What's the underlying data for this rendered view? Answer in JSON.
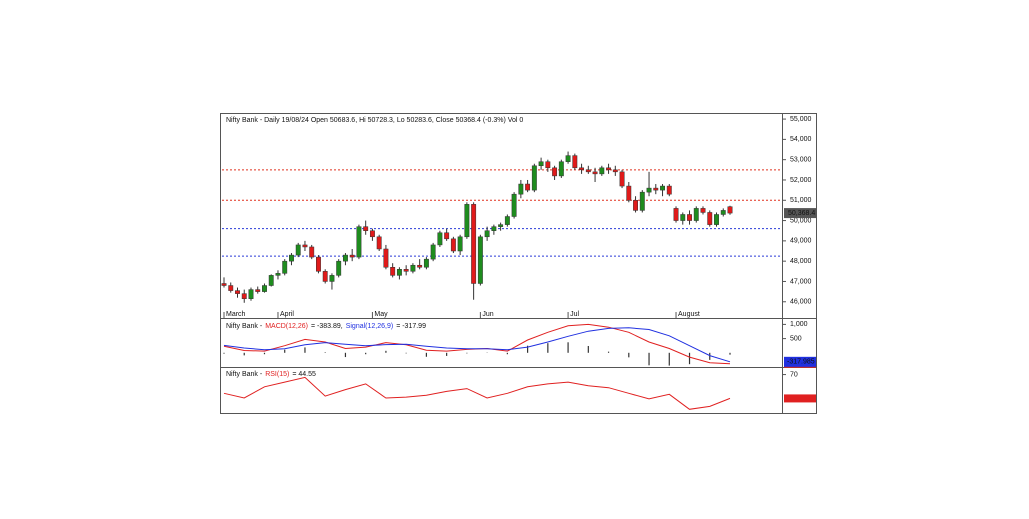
{
  "chart_data": [
    {
      "type": "candlestick",
      "title": "Nifty Bank - Daily 19/08/24 Open 50683.6, Hi 50728.3, Lo 50283.6, Close 50368.4 (-0.3%) Vol 0",
      "xlim": [
        0,
        75
      ],
      "xticks": [
        {
          "value": 0,
          "label": "March"
        },
        {
          "value": 8,
          "label": "April"
        },
        {
          "value": 22,
          "label": "May"
        },
        {
          "value": 38,
          "label": "Jun"
        },
        {
          "value": 51,
          "label": "Jul"
        },
        {
          "value": 67,
          "label": "August"
        }
      ],
      "up_color": "#1e8c1e",
      "down_color": "#e01a1a",
      "ohlc": [
        [
          46900,
          47200,
          46700,
          46800
        ],
        [
          46800,
          46950,
          46450,
          46550
        ],
        [
          46550,
          46700,
          46200,
          46400
        ],
        [
          46400,
          46600,
          45950,
          46150
        ],
        [
          46150,
          46700,
          46050,
          46600
        ],
        [
          46600,
          46750,
          46400,
          46500
        ],
        [
          46500,
          46900,
          46450,
          46800
        ],
        [
          46800,
          47350,
          46750,
          47300
        ],
        [
          47300,
          47550,
          47100,
          47400
        ],
        [
          47400,
          48100,
          47300,
          48000
        ],
        [
          48000,
          48400,
          47800,
          48300
        ],
        [
          48300,
          48900,
          48200,
          48800
        ],
        [
          48800,
          49000,
          48500,
          48700
        ],
        [
          48700,
          48800,
          48100,
          48200
        ],
        [
          48200,
          48300,
          47400,
          47500
        ],
        [
          47500,
          47600,
          46900,
          47000
        ],
        [
          47000,
          47400,
          46600,
          47300
        ],
        [
          47300,
          48100,
          47200,
          48000
        ],
        [
          48000,
          48400,
          47800,
          48300
        ],
        [
          48300,
          48600,
          48000,
          48200
        ],
        [
          48200,
          49800,
          48100,
          49700
        ],
        [
          49700,
          50000,
          49300,
          49500
        ],
        [
          49500,
          49600,
          49000,
          49200
        ],
        [
          49200,
          49300,
          48500,
          48600
        ],
        [
          48600,
          48800,
          47600,
          47700
        ],
        [
          47700,
          47900,
          47200,
          47300
        ],
        [
          47300,
          47700,
          47100,
          47600
        ],
        [
          47600,
          47800,
          47300,
          47500
        ],
        [
          47500,
          47900,
          47400,
          47800
        ],
        [
          47800,
          48100,
          47600,
          47700
        ],
        [
          47700,
          48200,
          47600,
          48100
        ],
        [
          48100,
          48900,
          48000,
          48800
        ],
        [
          48800,
          49500,
          48700,
          49400
        ],
        [
          49400,
          49600,
          49000,
          49100
        ],
        [
          49100,
          49200,
          48400,
          48500
        ],
        [
          48500,
          49300,
          48300,
          49200
        ],
        [
          49200,
          50900,
          49100,
          50800
        ],
        [
          50800,
          50900,
          46100,
          46900
        ],
        [
          46900,
          49300,
          46800,
          49200
        ],
        [
          49200,
          49700,
          49000,
          49500
        ],
        [
          49500,
          49800,
          49300,
          49700
        ],
        [
          49700,
          49900,
          49500,
          49800
        ],
        [
          49800,
          50300,
          49700,
          50200
        ],
        [
          50200,
          51400,
          50100,
          51300
        ],
        [
          51300,
          52000,
          51100,
          51800
        ],
        [
          51800,
          52000,
          51400,
          51500
        ],
        [
          51500,
          52800,
          51400,
          52700
        ],
        [
          52700,
          53100,
          52500,
          52900
        ],
        [
          52900,
          53000,
          52400,
          52600
        ],
        [
          52600,
          52700,
          52000,
          52200
        ],
        [
          52200,
          53000,
          52100,
          52900
        ],
        [
          52900,
          53400,
          52800,
          53200
        ],
        [
          53200,
          53300,
          52500,
          52600
        ],
        [
          52600,
          52800,
          52300,
          52500
        ],
        [
          52500,
          52700,
          52300,
          52400
        ],
        [
          52400,
          52600,
          51900,
          52300
        ],
        [
          52300,
          52700,
          52200,
          52600
        ],
        [
          52600,
          52800,
          52300,
          52500
        ],
        [
          52500,
          52700,
          52200,
          52400
        ],
        [
          52400,
          52500,
          51600,
          51700
        ],
        [
          51700,
          51900,
          50900,
          51000
        ],
        [
          51000,
          51200,
          50400,
          50500
        ],
        [
          50500,
          51500,
          50400,
          51400
        ],
        [
          51400,
          52400,
          51200,
          51600
        ],
        [
          51600,
          51800,
          51300,
          51500
        ],
        [
          51500,
          51800,
          51200,
          51700
        ],
        [
          51700,
          51800,
          51200,
          51300
        ],
        [
          50600,
          50700,
          49900,
          50000
        ],
        [
          50000,
          50400,
          49800,
          50300
        ],
        [
          50300,
          50500,
          49800,
          50000
        ],
        [
          50000,
          50700,
          49900,
          50600
        ],
        [
          50600,
          50700,
          50300,
          50400
        ],
        [
          50400,
          50500,
          49700,
          49800
        ],
        [
          49800,
          50400,
          49700,
          50300
        ],
        [
          50300,
          50600,
          50200,
          50500
        ],
        [
          50683.6,
          50728.3,
          50283.6,
          50368.4
        ]
      ],
      "ylim": [
        45200,
        55250
      ],
      "yticks": [
        {
          "value": 46000,
          "label": "46,000"
        },
        {
          "value": 47000,
          "label": "47,000"
        },
        {
          "value": 48000,
          "label": "48,000"
        },
        {
          "value": 49000,
          "label": "49,000"
        },
        {
          "value": 50000,
          "label": "50,000"
        },
        {
          "value": 51000,
          "label": "51,000"
        },
        {
          "value": 52000,
          "label": "52,000"
        },
        {
          "value": 53000,
          "label": "53,000"
        },
        {
          "value": 54000,
          "label": "54,000"
        },
        {
          "value": 55000,
          "label": "55,000"
        }
      ],
      "levels": [
        {
          "value": 52500,
          "color": "#e0301e"
        },
        {
          "value": 51000,
          "color": "#e0301e"
        },
        {
          "value": 49600,
          "color": "#2a3ad8"
        },
        {
          "value": 48250,
          "color": "#2a3ad8"
        }
      ],
      "last_price": {
        "value": 50368.4,
        "label": "50,368.4"
      }
    },
    {
      "type": "macd",
      "label": "Nifty Bank -",
      "xlim": [
        0,
        75
      ],
      "x": [
        0,
        3,
        6,
        9,
        12,
        15,
        18,
        21,
        24,
        27,
        30,
        33,
        36,
        39,
        42,
        45,
        48,
        51,
        54,
        57,
        60,
        63,
        66,
        69,
        72,
        75
      ],
      "series": [
        {
          "name": "MACD(12,26)",
          "color": "#e02020",
          "readout": "= -383.89,",
          "values": [
            230,
            80,
            60,
            250,
            470,
            380,
            150,
            200,
            360,
            280,
            90,
            60,
            120,
            150,
            60,
            450,
            720,
            950,
            1000,
            900,
            720,
            380,
            150,
            -150,
            -350,
            -383.89
          ]
        },
        {
          "name": "Signal(12,26,9)",
          "color": "#2030e0",
          "readout": "= -317.99",
          "values": [
            260,
            170,
            110,
            140,
            280,
            360,
            300,
            250,
            290,
            300,
            230,
            170,
            140,
            140,
            110,
            200,
            380,
            580,
            760,
            860,
            880,
            820,
            600,
            250,
            -100,
            -317.99
          ]
        }
      ],
      "histogram": [
        -30,
        -90,
        -50,
        110,
        190,
        20,
        -150,
        -50,
        70,
        -20,
        -140,
        -110,
        -20,
        10,
        -50,
        250,
        340,
        370,
        240,
        40,
        -160,
        -440,
        -450,
        -400,
        -250,
        -65.9
      ],
      "ylim": [
        -500,
        1190
      ],
      "yticks": [
        {
          "value": 1000,
          "label": "1,000"
        },
        500
      ],
      "last_tag": {
        "value": -317.985,
        "label": "-317.985"
      }
    },
    {
      "type": "rsi",
      "label": "Nifty Bank -",
      "xlim": [
        0,
        75
      ],
      "x": [
        0,
        3,
        6,
        9,
        12,
        15,
        18,
        21,
        24,
        27,
        30,
        33,
        36,
        39,
        42,
        45,
        48,
        51,
        54,
        57,
        60,
        63,
        66,
        69,
        72,
        75
      ],
      "series": [
        {
          "name": "RSI(15)",
          "color": "#e02020",
          "readout": "= 44.55",
          "values": [
            50,
            45,
            57,
            62,
            67,
            47,
            54,
            60,
            45,
            46,
            48,
            52,
            55,
            45,
            50,
            57,
            60,
            62,
            58,
            56,
            50,
            44,
            49,
            33,
            36,
            44.55
          ]
        }
      ],
      "ylim": [
        29,
        77
      ],
      "yticks": [
        70
      ]
    }
  ]
}
